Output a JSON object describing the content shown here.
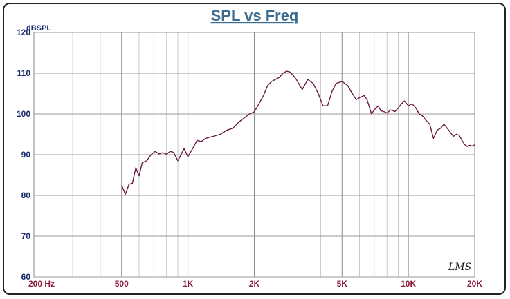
{
  "chart_data": {
    "type": "line",
    "title": "SPL vs Freq",
    "ylabel": "dBSPL",
    "xlabel": "",
    "xscale": "log",
    "xlim": [
      200,
      20000
    ],
    "ylim": [
      60,
      120
    ],
    "yticks": [
      60,
      70,
      80,
      90,
      100,
      110,
      120
    ],
    "yticklabels": [
      "60",
      "70",
      "80",
      "90",
      "100",
      "110",
      "120"
    ],
    "xticks": [
      200,
      500,
      1000,
      2000,
      5000,
      10000,
      20000
    ],
    "xticklabels": [
      "200  Hz",
      "500",
      "1K",
      "2K",
      "5K",
      "10K",
      "20K"
    ],
    "grid": true,
    "watermark": "LMS",
    "series": [
      {
        "name": "SPL",
        "color": "#7a1f4a",
        "x": [
          500,
          520,
          540,
          560,
          580,
          600,
          620,
          650,
          680,
          710,
          740,
          770,
          800,
          830,
          860,
          900,
          930,
          960,
          1000,
          1050,
          1100,
          1150,
          1200,
          1300,
          1400,
          1500,
          1600,
          1700,
          1800,
          1900,
          2000,
          2100,
          2200,
          2300,
          2400,
          2500,
          2600,
          2700,
          2800,
          2900,
          3000,
          3100,
          3300,
          3500,
          3700,
          3900,
          4100,
          4300,
          4500,
          4700,
          5000,
          5300,
          5500,
          5800,
          6000,
          6300,
          6500,
          6800,
          7000,
          7300,
          7500,
          7800,
          8000,
          8300,
          8700,
          9000,
          9300,
          9600,
          10000,
          10400,
          10800,
          11200,
          11600,
          12000,
          12500,
          13000,
          13500,
          14000,
          14500,
          15000,
          15500,
          16000,
          16500,
          17000,
          17500,
          18000,
          18500,
          19000,
          19500,
          20000
        ],
        "values": [
          82.5,
          80.3,
          82.7,
          83.0,
          86.8,
          84.8,
          88.0,
          88.5,
          90.0,
          90.8,
          90.2,
          90.5,
          90.1,
          90.8,
          90.6,
          88.5,
          90.0,
          91.5,
          89.5,
          91.5,
          93.5,
          93.2,
          94.0,
          94.5,
          95.0,
          96.0,
          96.5,
          98.0,
          99.0,
          100.0,
          100.5,
          102.5,
          104.5,
          107.0,
          108.0,
          108.5,
          109.0,
          110.0,
          110.5,
          110.3,
          109.5,
          108.5,
          106.0,
          108.5,
          107.5,
          105.0,
          102.0,
          102.0,
          105.5,
          107.5,
          108.0,
          107.0,
          105.5,
          103.5,
          104.0,
          104.5,
          103.5,
          100.0,
          101.0,
          102.0,
          100.8,
          100.5,
          100.2,
          101.0,
          100.6,
          101.5,
          102.5,
          103.2,
          102.0,
          102.5,
          101.5,
          100.0,
          99.5,
          98.5,
          97.5,
          94.0,
          96.0,
          96.5,
          97.5,
          96.5,
          95.5,
          94.5,
          95.0,
          94.8,
          93.5,
          92.5,
          92.0,
          92.3,
          92.1,
          92.4
        ]
      }
    ]
  }
}
